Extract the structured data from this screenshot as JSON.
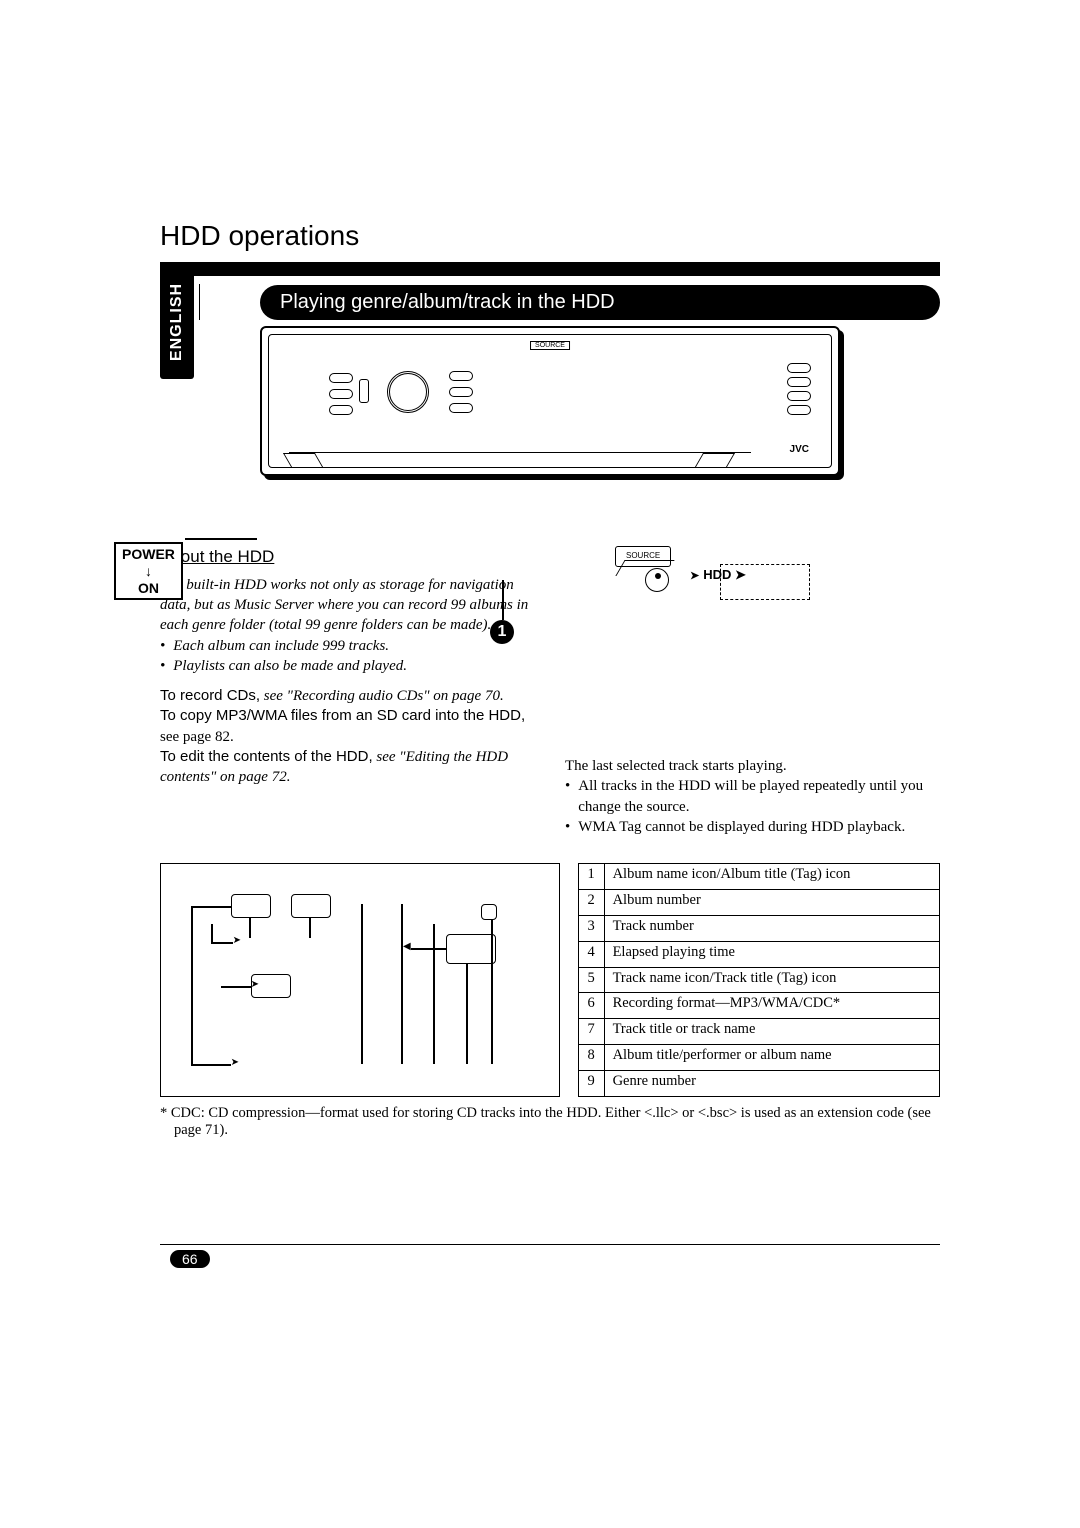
{
  "page": {
    "title": "HDD operations",
    "language_tab": "ENGLISH",
    "banner": "Playing genre/album/track in the HDD",
    "source_label": "SOURCE",
    "jvc": "JVC",
    "power": {
      "line1": "POWER",
      "line2": "↓",
      "line3": "ON"
    },
    "step1": "1",
    "number": "66"
  },
  "about": {
    "heading": "About the HDD",
    "intro": "The built-in HDD works not only as storage for navigation data, but as Music Server where you can record 99 albums in each genre folder (total 99 genre folders can be made).",
    "bullets": [
      "Each album can include 999 tracks.",
      "Playlists can also be made and played."
    ],
    "record_label": "To record CDs,",
    "record_rest": " see \"Recording audio CDs\" on page 70.",
    "copy_label": "To copy MP3/WMA files from an SD card into the HDD,",
    "copy_rest": " see page 82.",
    "edit_label": "To edit the contents of the HDD,",
    "edit_rest": " see \"Editing the HDD contents\" on page 72."
  },
  "right": {
    "source_small": "SOURCE",
    "hdd": "HDD",
    "last_selected": "The last selected track starts playing.",
    "bullets": [
      "All tracks in the HDD will be played repeatedly until you change the source.",
      "WMA Tag cannot be displayed during HDD playback."
    ]
  },
  "callouts": [
    {
      "n": "1",
      "text": "Album name icon/Album title (Tag) icon"
    },
    {
      "n": "2",
      "text": "Album number"
    },
    {
      "n": "3",
      "text": "Track number"
    },
    {
      "n": "4",
      "text": "Elapsed playing time"
    },
    {
      "n": "5",
      "text": "Track name icon/Track title (Tag) icon"
    },
    {
      "n": "6",
      "text": "Recording format—MP3/WMA/CDC*"
    },
    {
      "n": "7",
      "text": "Track title or track name"
    },
    {
      "n": "8",
      "text": "Album title/performer or album name"
    },
    {
      "n": "9",
      "text": "Genre number"
    }
  ],
  "footnote": "* CDC: CD compression—format used for storing CD tracks into the HDD. Either <.llc> or <.bsc> is used as an extension code (see page 71)."
}
